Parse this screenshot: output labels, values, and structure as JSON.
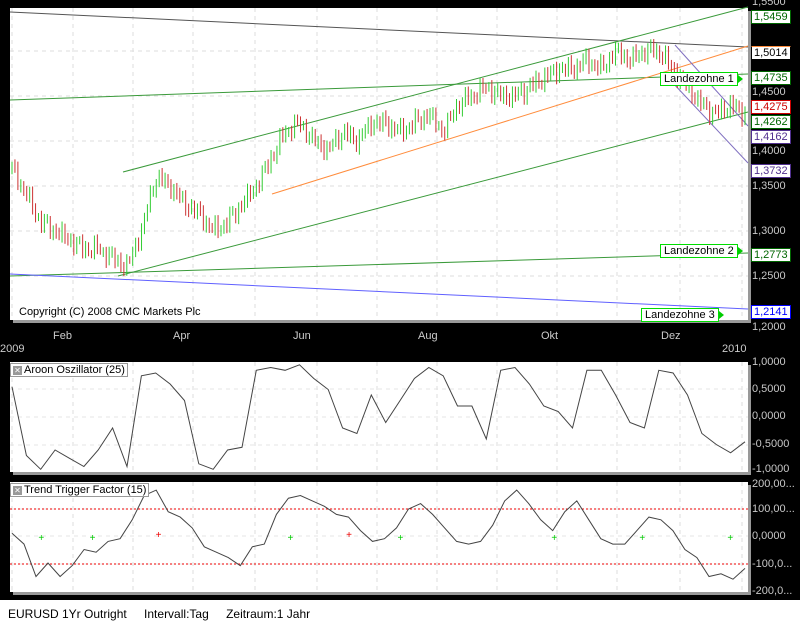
{
  "instrument": "EURUSD 1Yr Outright",
  "status": {
    "instrument": "EURUSD 1Yr Outright",
    "interval": "Intervall:Tag",
    "period": "Zeitraum:1 Jahr"
  },
  "copyright": "Copyright (C) 2008 CMC Markets Plc",
  "price_axis": [
    "1,5500",
    "1,4500",
    "1,4000",
    "1,3500",
    "1,3000",
    "1,2500",
    "1,2000"
  ],
  "price_tags": {
    "upper_channel": "1,5459",
    "resistance": "1,5014",
    "orange_line": "1,5014",
    "landezone1": "1,4735",
    "current": "1,4275",
    "hidden": "1,4262",
    "down_channel_top": "1,4162",
    "down_channel_bottom": "1,3732",
    "landezone2": "1,2773",
    "landezone3": "1,2141"
  },
  "zones": {
    "z1": "Landezohne 1",
    "z2": "Landezohne 2",
    "z3": "Landezohne 3"
  },
  "months": [
    "Feb",
    "Apr",
    "Jun",
    "Aug",
    "Okt",
    "Dez"
  ],
  "years": [
    "2009",
    "2010"
  ],
  "colors": {
    "up": "#33cc33",
    "down": "#cc3333",
    "green_line": "#3a9a3a",
    "orange": "#ff8c3c",
    "purple": "#8070c0",
    "blue": "#3030ff",
    "resistance": "#555555"
  },
  "chart_data": {
    "type": "candlestick",
    "ylim": [
      1.2,
      1.55
    ],
    "weekly_close": [
      1.37,
      1.34,
      1.31,
      1.3,
      1.29,
      1.28,
      1.28,
      1.27,
      1.26,
      1.3,
      1.36,
      1.35,
      1.33,
      1.32,
      1.3,
      1.31,
      1.33,
      1.35,
      1.38,
      1.41,
      1.42,
      1.4,
      1.39,
      1.41,
      1.4,
      1.42,
      1.42,
      1.41,
      1.42,
      1.43,
      1.41,
      1.44,
      1.45,
      1.46,
      1.45,
      1.45,
      1.46,
      1.47,
      1.48,
      1.48,
      1.49,
      1.48,
      1.5,
      1.49,
      1.5,
      1.5,
      1.48,
      1.46,
      1.44,
      1.43,
      1.44,
      1.43
    ],
    "aroon": {
      "title": "Aroon Oszillator (25)",
      "axis": [
        "1,0000",
        "0,5000",
        "0,0000",
        "-0,5000",
        "-1,0000"
      ],
      "values": [
        0.55,
        -0.7,
        -0.95,
        -0.6,
        -0.75,
        -0.9,
        -0.6,
        -0.2,
        -0.9,
        0.75,
        0.8,
        0.6,
        0.3,
        -0.85,
        -0.95,
        -0.6,
        -0.55,
        0.85,
        0.9,
        0.85,
        0.95,
        0.7,
        0.5,
        -0.2,
        -0.3,
        0.4,
        -0.1,
        0.3,
        0.7,
        0.9,
        0.75,
        0.2,
        0.2,
        -0.4,
        0.85,
        0.9,
        0.6,
        0.2,
        0.1,
        -0.2,
        0.85,
        0.85,
        0.4,
        -0.1,
        -0.2,
        0.85,
        0.8,
        0.4,
        -0.3,
        -0.5,
        -0.65,
        -0.45
      ]
    },
    "ttf": {
      "title": "Trend Trigger Factor (15)",
      "axis": [
        "200,00...",
        "100,00...",
        "0,0000",
        "-100,0...",
        "-200,0..."
      ],
      "levels": [
        100,
        -100
      ],
      "values": [
        10,
        -30,
        -150,
        -100,
        -150,
        -110,
        -50,
        -60,
        -20,
        -10,
        60,
        150,
        170,
        90,
        70,
        30,
        -40,
        -60,
        -80,
        -110,
        -40,
        -30,
        80,
        140,
        150,
        130,
        110,
        80,
        70,
        20,
        -20,
        -10,
        30,
        100,
        120,
        80,
        30,
        -20,
        -30,
        -20,
        40,
        130,
        170,
        120,
        60,
        20,
        90,
        130,
        60,
        -10,
        -30,
        -30,
        20,
        70,
        60,
        20,
        -50,
        -80,
        -150,
        -140,
        -160,
        -120
      ],
      "buy_signals": [
        0.04,
        0.11,
        0.38,
        0.53,
        0.74,
        0.86,
        0.98
      ],
      "sell_signals": [
        0.2,
        0.46
      ]
    }
  }
}
